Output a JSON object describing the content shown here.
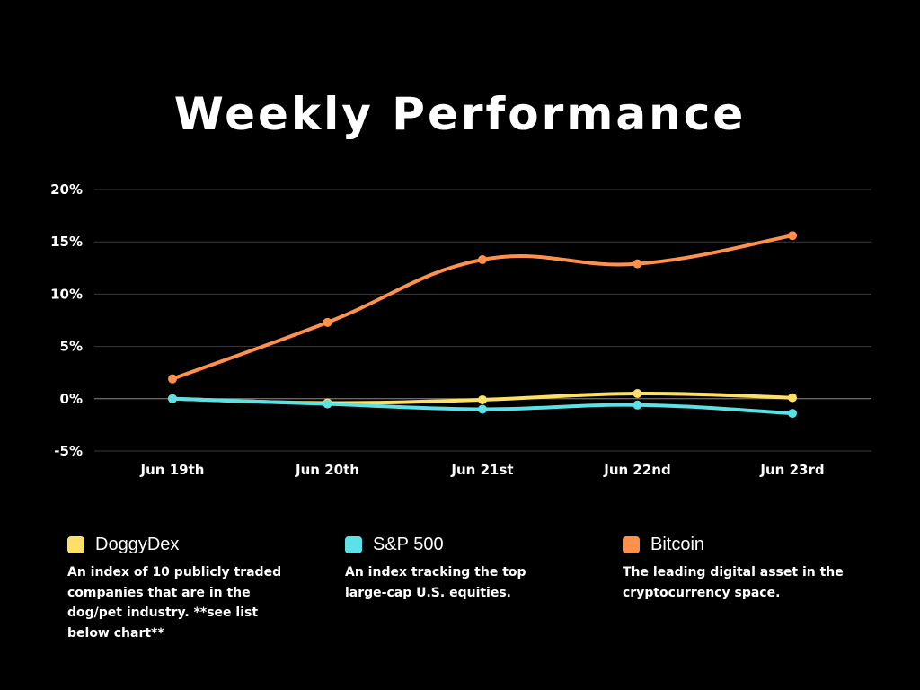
{
  "chart_data": {
    "type": "line",
    "title": "Weekly Performance",
    "xlabel": "",
    "ylabel": "",
    "categories": [
      "Jun 19th",
      "Jun 20th",
      "Jun 21st",
      "Jun 22nd",
      "Jun 23rd"
    ],
    "y_ticks": [
      20,
      15,
      10,
      5,
      0,
      -5
    ],
    "y_tick_labels": [
      "20%",
      "15%",
      "10%",
      "5%",
      "0%",
      "-5%"
    ],
    "ylim": [
      -5,
      20
    ],
    "grid": true,
    "series": [
      {
        "name": "DoggyDex",
        "color": "#ffe066",
        "values": [
          0.0,
          -0.4,
          -0.1,
          0.5,
          0.1
        ]
      },
      {
        "name": "S&P 500",
        "color": "#5ce1e6",
        "values": [
          0.0,
          -0.5,
          -1.0,
          -0.6,
          -1.4
        ]
      },
      {
        "name": "Bitcoin",
        "color": "#ff914d",
        "values": [
          1.9,
          7.3,
          13.3,
          12.9,
          15.6
        ]
      }
    ]
  },
  "legend": [
    {
      "name": "DoggyDex",
      "color": "#ffe066",
      "description": "An index of 10 publicly traded companies that are in the dog/pet industry. **see list below chart**"
    },
    {
      "name": "S&P 500",
      "color": "#5ce1e6",
      "description": "An index tracking the top large-cap U.S. equities."
    },
    {
      "name": "Bitcoin",
      "color": "#ff914d",
      "description": "The leading digital asset in the cryptocurrency space."
    }
  ]
}
